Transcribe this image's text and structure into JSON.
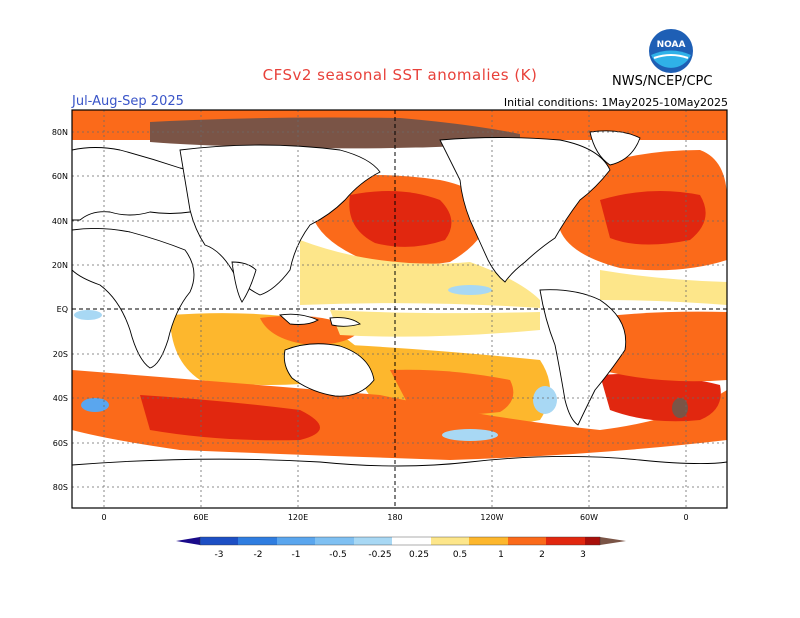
{
  "header": {
    "title": "CFSv2 seasonal SST anomalies (K)",
    "period": "Jul-Aug-Sep 2025",
    "initial_conditions": "Initial conditions: 1May2025-10May2025",
    "organization": "NWS/NCEP/CPC",
    "logo_text": "NOAA"
  },
  "map": {
    "lat_labels": [
      "80N",
      "60N",
      "40N",
      "20N",
      "EQ",
      "20S",
      "40S",
      "60S",
      "80S"
    ],
    "lon_labels": [
      "0",
      "60E",
      "120E",
      "180",
      "120W",
      "60W",
      "0"
    ],
    "projection": "cylindrical equidistant",
    "lon_range": [
      -20,
      380
    ],
    "lat_range": [
      -90,
      90
    ]
  },
  "legend": {
    "tick_labels": [
      "-3",
      "-2",
      "-1",
      "-0.5",
      "-0.25",
      "0.25",
      "0.5",
      "1",
      "2",
      "3"
    ],
    "colors": [
      "#1a0a8a",
      "#1d4fc4",
      "#2f7de0",
      "#5aa6ee",
      "#a8d8f4",
      "#ffffff",
      "#fde68a",
      "#fdb72d",
      "#fb6a1a",
      "#e1270f",
      "#a80f0a",
      "#7a5446"
    ]
  },
  "colors": {
    "land": "#ffffff",
    "coast": "#000000",
    "grid": "#6a6a6a",
    "title": "#e8413a",
    "period": "#3a55c8"
  }
}
